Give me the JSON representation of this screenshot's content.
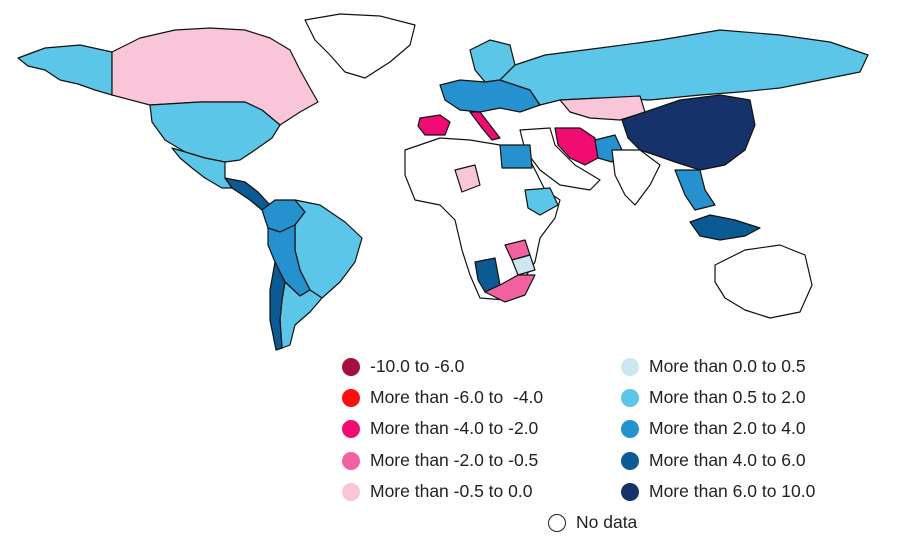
{
  "map": {
    "colors": {
      "land_default": "#ffffff",
      "border": "#111111"
    },
    "legend": [
      {
        "label": "-10.0 to -6.0",
        "color": "#a50f3b"
      },
      {
        "label": "More than -6.0 to  -4.0",
        "color": "#ff0d0d"
      },
      {
        "label": "More than -4.0 to -2.0",
        "color": "#f00c73"
      },
      {
        "label": "More than -2.0 to -0.5",
        "color": "#f262a0"
      },
      {
        "label": "More than -0.5 to 0.0",
        "color": "#f8c6d8"
      },
      {
        "label": "More than 0.0 to 0.5",
        "color": "#cbe7f2"
      },
      {
        "label": "More than 0.5 to 2.0",
        "color": "#5bc6e8"
      },
      {
        "label": "More than 2.0 to 4.0",
        "color": "#2592cf"
      },
      {
        "label": "More than 4.0 to 6.0",
        "color": "#0b5a93"
      },
      {
        "label": "More than 6.0 to 10.0",
        "color": "#16326a"
      }
    ],
    "no_data_label": "No data",
    "regions": [
      {
        "name": "alaska",
        "color": "#5bc6e8"
      },
      {
        "name": "canada",
        "color": "#f8c6d8"
      },
      {
        "name": "greenland",
        "color": "#ffffff"
      },
      {
        "name": "usa",
        "color": "#5bc6e8"
      },
      {
        "name": "mexico",
        "color": "#5bc6e8"
      },
      {
        "name": "central-america",
        "color": "#0b5a93"
      },
      {
        "name": "colombia",
        "color": "#2592cf"
      },
      {
        "name": "brazil",
        "color": "#5bc6e8"
      },
      {
        "name": "peru-bolivia",
        "color": "#2592cf"
      },
      {
        "name": "chile",
        "color": "#0b5a93"
      },
      {
        "name": "argentina",
        "color": "#5bc6e8"
      },
      {
        "name": "scandinavia",
        "color": "#5bc6e8"
      },
      {
        "name": "western-europe",
        "color": "#2592cf"
      },
      {
        "name": "iberia",
        "color": "#f00c73"
      },
      {
        "name": "italy",
        "color": "#f00c73"
      },
      {
        "name": "russia",
        "color": "#5bc6e8"
      },
      {
        "name": "kazakhstan",
        "color": "#f8c6d8"
      },
      {
        "name": "iran",
        "color": "#f00c73"
      },
      {
        "name": "pakistan",
        "color": "#2592cf"
      },
      {
        "name": "china",
        "color": "#16326a"
      },
      {
        "name": "southeast-asia",
        "color": "#2592cf"
      },
      {
        "name": "indonesia",
        "color": "#0b5a93"
      },
      {
        "name": "egypt",
        "color": "#2592cf"
      },
      {
        "name": "chad",
        "color": "#f8c6d8"
      },
      {
        "name": "ethiopia",
        "color": "#5bc6e8"
      },
      {
        "name": "zambia",
        "color": "#f262a0"
      },
      {
        "name": "zimbabwe",
        "color": "#cbe7f2"
      },
      {
        "name": "namibia",
        "color": "#0b5a93"
      },
      {
        "name": "south-africa",
        "color": "#f262a0"
      },
      {
        "name": "africa-rest",
        "color": "#ffffff"
      },
      {
        "name": "middle-east",
        "color": "#ffffff"
      },
      {
        "name": "india",
        "color": "#ffffff"
      },
      {
        "name": "australia",
        "color": "#ffffff"
      }
    ]
  }
}
